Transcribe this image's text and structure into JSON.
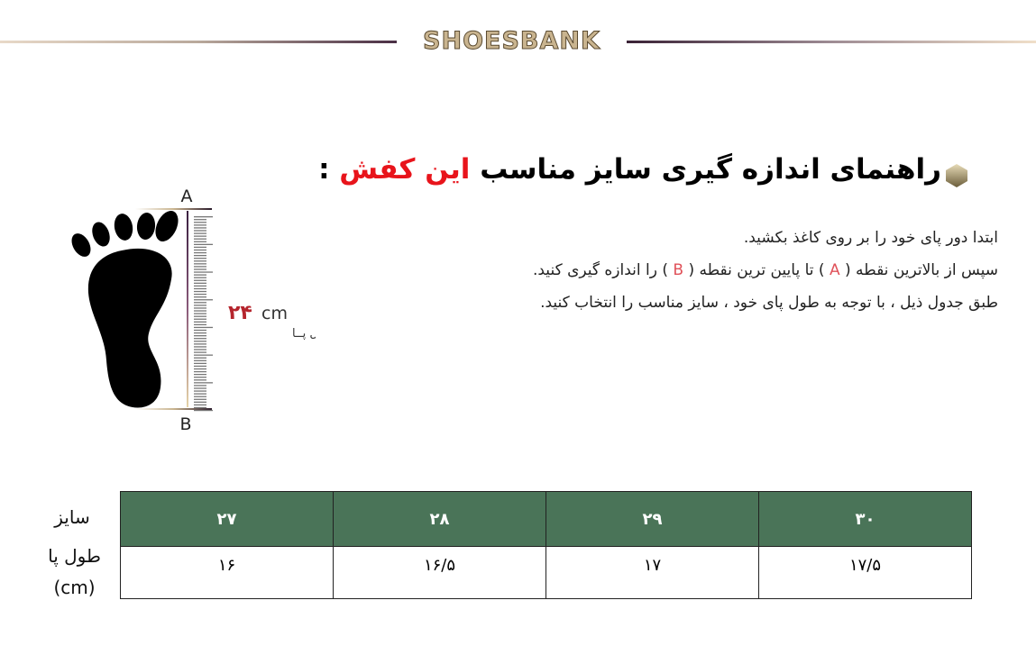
{
  "brand": {
    "logo": "SHOESBANK"
  },
  "guide": {
    "title_main": "راهنمای اندازه گیری سایز مناسب",
    "title_highlight": "این کفش",
    "title_colon": " :",
    "line1": "ابتدا دور پای خود را بر روی کاغذ بکشید.",
    "line2_a": "سپس از بالاترین نقطه ( ",
    "point_a": "A",
    "line2_b": " ) تا پایین ترین نقطه ( ",
    "point_b": "B",
    "line2_c": " ) را اندازه گیری کنید.",
    "line3": "طبق جدول ذیل  ، با توجه به طول پای خود ، سایز مناسب را انتخاب کنید."
  },
  "illustration": {
    "label_a": "A",
    "label_b": "B",
    "length_value": "۲۴",
    "length_unit": "cm",
    "length_label": "طــول پــا"
  },
  "table": {
    "size_label": "سایز",
    "length_label": "طول پا",
    "length_unit": "(cm)",
    "sizes": [
      "۲۷",
      "۲۸",
      "۲۹",
      "۳۰"
    ],
    "lengths": [
      "۱۶",
      "۱۶/۵",
      "۱۷",
      "۱۷/۵"
    ]
  },
  "colors": {
    "header_green": "#4a7458",
    "highlight_red": "#e8141b",
    "point_red": "#e0525a"
  }
}
